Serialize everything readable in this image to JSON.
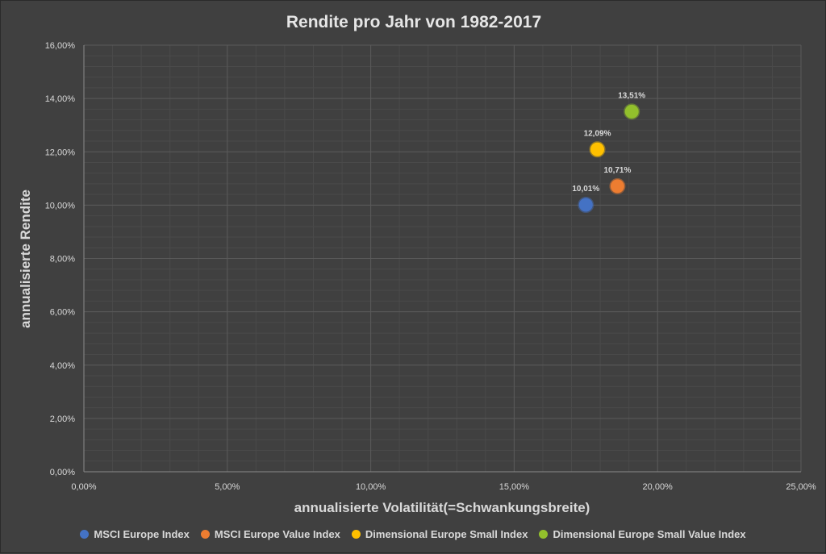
{
  "chart_data": {
    "type": "scatter",
    "title": "Rendite pro Jahr von 1982-2017",
    "xlabel": "annualisierte Volatilität(=Schwankungsbreite)",
    "ylabel": "annualisierte Rendite",
    "xlim": [
      0,
      0.25
    ],
    "ylim": [
      0,
      0.16
    ],
    "x_ticks": [
      0,
      0.05,
      0.1,
      0.15,
      0.2,
      0.25
    ],
    "x_tick_labels": [
      "0,00%",
      "5,00%",
      "10,00%",
      "15,00%",
      "20,00%",
      "25,00%"
    ],
    "y_ticks": [
      0,
      0.02,
      0.04,
      0.06,
      0.08,
      0.1,
      0.12,
      0.14,
      0.16
    ],
    "y_tick_labels": [
      "0,00%",
      "2,00%",
      "4,00%",
      "6,00%",
      "8,00%",
      "10,00%",
      "12,00%",
      "14,00%",
      "16,00%"
    ],
    "grid": true,
    "legend_position": "bottom",
    "series": [
      {
        "name": "MSCI Europe Index",
        "color": "#4472c4",
        "x": 0.175,
        "y": 0.1001,
        "label": "10,01%"
      },
      {
        "name": "MSCI Europe Value Index",
        "color": "#ed7d31",
        "x": 0.186,
        "y": 0.1071,
        "label": "10,71%"
      },
      {
        "name": "Dimensional Europe Small Index",
        "color": "#ffc000",
        "x": 0.179,
        "y": 0.1209,
        "label": "12,09%"
      },
      {
        "name": "Dimensional Europe Small Value Index",
        "color": "#92c02c",
        "x": 0.191,
        "y": 0.1351,
        "label": "13,51%"
      }
    ]
  }
}
